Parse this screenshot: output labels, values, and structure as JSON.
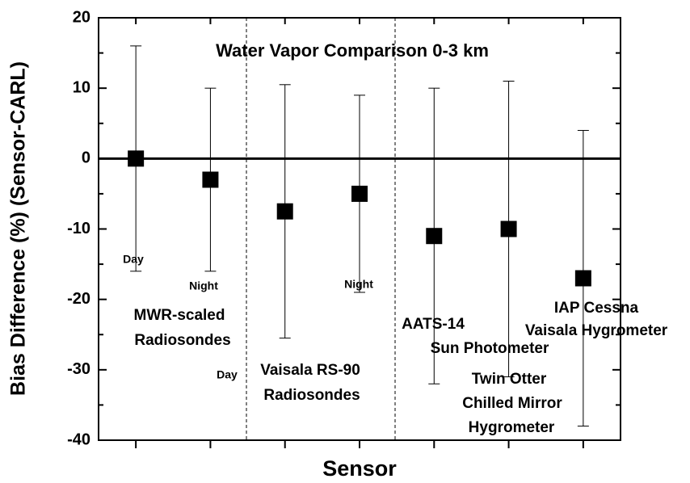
{
  "chart_data": {
    "type": "errorbar",
    "title": "Water Vapor Comparison  0-3 km",
    "x_label": "Sensor",
    "y_label": "Bias Difference (%) (Sensor-CARL)",
    "categories": [
      null,
      null,
      null,
      null,
      null,
      null,
      null
    ],
    "x": [
      1,
      2,
      3,
      4,
      5,
      6,
      7
    ],
    "values": [
      0,
      -3,
      -7.5,
      -5,
      -11,
      -10,
      -17
    ],
    "errors": [
      16,
      13,
      18,
      14,
      21,
      21,
      21
    ],
    "color": "#000000",
    "xlim": [
      0.5,
      7.5
    ],
    "ylim": [
      -40,
      20
    ],
    "yticks": [
      -40,
      -30,
      -20,
      -10,
      0,
      10,
      20
    ],
    "annotations": [
      "Day",
      "Night",
      "MWR-scaled",
      "Radiosondes",
      "Day",
      "Vaisala RS-90",
      "Radiosondes",
      "Night",
      "AATS-14",
      "Sun Photometer",
      "IAP Cessna",
      "Vaisala Hygrometer",
      "Twin Otter",
      "Chilled Mirror",
      "Hygrometer"
    ]
  }
}
